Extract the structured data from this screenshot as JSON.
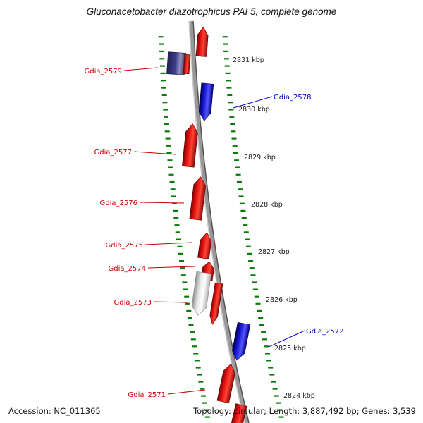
{
  "title": "Gluconacetobacter diazotrophicus PAI 5, complete genome",
  "scale": {
    "unit": "kbp",
    "labels": [
      "2831 kbp",
      "2830 kbp",
      "2829 kbp",
      "2828 kbp",
      "2827 kbp",
      "2826 kbp",
      "2825 kbp",
      "2824 kbp"
    ]
  },
  "labels": {
    "left": [
      "Gdia_2579",
      "Gdia_2577",
      "Gdia_2576",
      "Gdia_2575",
      "Gdia_2574",
      "Gdia_2573",
      "Gdia_2571"
    ],
    "right": [
      "Gdia_2578",
      "Gdia_2572"
    ]
  },
  "genes": [
    {
      "name": "Gdia_2579",
      "color": "#3c3c8a",
      "shape": "block",
      "label_side": "left"
    },
    {
      "name": "Gdia_2578",
      "color": "#1717d6",
      "direction": "down",
      "label_side": "right"
    },
    {
      "name": "Gdia_2577",
      "color": "#e01010",
      "direction": "up",
      "label_side": "left"
    },
    {
      "name": "Gdia_2576",
      "color": "#e01010",
      "direction": "up",
      "label_side": "left"
    },
    {
      "name": "Gdia_2575",
      "color": "#e01010",
      "direction": "up",
      "label_side": "left"
    },
    {
      "name": "Gdia_2574",
      "color": "#e01010",
      "direction": "up",
      "label_side": "left"
    },
    {
      "name": "Gdia_2573",
      "color": "#e9e9e9",
      "direction": "down",
      "label_side": "left"
    },
    {
      "name": "Gdia_2572",
      "color": "#1717d6",
      "direction": "down",
      "label_side": "right"
    },
    {
      "name": "Gdia_2571",
      "color": "#e01010",
      "direction": "up",
      "label_side": "left"
    }
  ],
  "colors": {
    "gene_red": "#e01010",
    "gene_blue": "#1717d6",
    "gene_navy": "#3c3c8a",
    "gene_gray": "#e9e9e9",
    "tick_green": "#0a7a0a",
    "label_red": "#cc0000",
    "label_blue": "#0000cc",
    "backbone_gray": "#999999"
  },
  "status_bar": {
    "accession": "Accession: NC_011365",
    "summary": "Topology: circular; Length: 3,887,492 bp; Genes: 3,539"
  }
}
